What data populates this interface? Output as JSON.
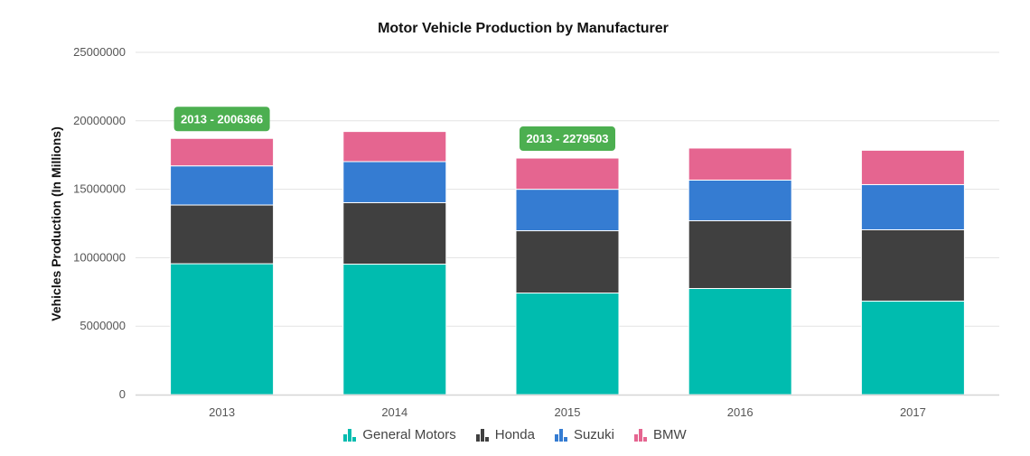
{
  "chart_data": {
    "type": "bar",
    "stacked": true,
    "title": "Motor Vehicle Production by Manufacturer",
    "xlabel": "",
    "ylabel": "Vehicles Production (In Millions)",
    "ylim": [
      0,
      25000000
    ],
    "yticks": [
      0,
      5000000,
      10000000,
      15000000,
      20000000,
      25000000
    ],
    "ytick_labels": [
      "0",
      "5000000",
      "10000000",
      "15000000",
      "20000000",
      "25000000"
    ],
    "grid": true,
    "legend_position": "bottom-center",
    "categories": [
      "2013",
      "2014",
      "2015",
      "2016",
      "2017"
    ],
    "series": [
      {
        "name": "General Motors",
        "color": "#00bcaf",
        "values": [
          9560000,
          9530000,
          7420000,
          7750000,
          6830000
        ]
      },
      {
        "name": "Honda",
        "color": "#404040",
        "values": [
          4290000,
          4490000,
          4550000,
          4950000,
          5210000
        ]
      },
      {
        "name": "Suzuki",
        "color": "#357cd2",
        "values": [
          2860000,
          3000000,
          3030000,
          2970000,
          3300000
        ]
      },
      {
        "name": "BMW",
        "color": "#e56590",
        "values": [
          2006366,
          2200000,
          2279503,
          2340000,
          2510000
        ]
      }
    ],
    "annotations": [
      {
        "text": "2013 - 2006366",
        "category": "2013",
        "anchor": "top-of-stack",
        "color": "#4caf50"
      },
      {
        "text": "2013 - 2279503",
        "category": "2015",
        "anchor": "top-of-stack",
        "color": "#4caf50"
      }
    ]
  }
}
